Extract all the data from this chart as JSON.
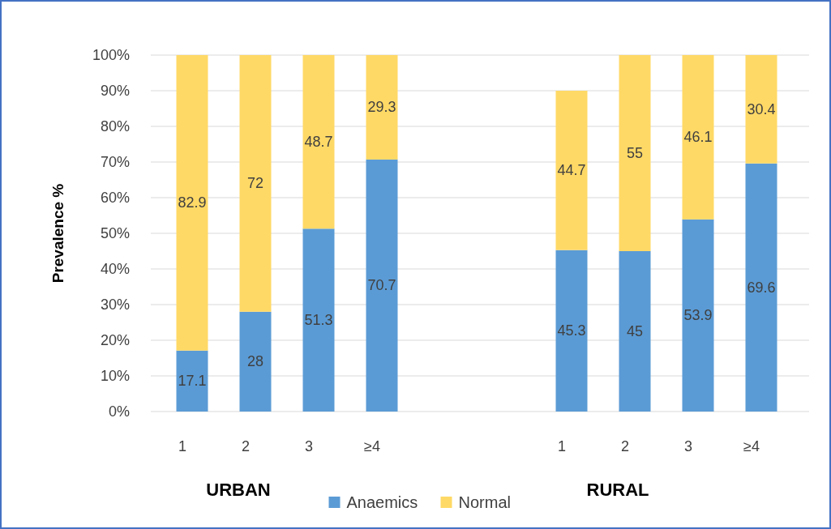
{
  "chart_data": {
    "type": "bar",
    "stacked": true,
    "ylabel": "Prevalence %",
    "categories": [
      "1",
      "2",
      "3",
      "≥4",
      null,
      null,
      "1",
      "2",
      "3",
      "≥4"
    ],
    "series": [
      {
        "name": "Anaemics",
        "color": "#5b9bd5",
        "values": [
          17.1,
          28,
          51.3,
          70.7,
          null,
          null,
          45.3,
          45,
          53.9,
          69.6
        ]
      },
      {
        "name": "Normal",
        "color": "#ffd966",
        "values": [
          82.9,
          72,
          48.7,
          29.3,
          null,
          null,
          44.7,
          55,
          46.1,
          30.4
        ]
      }
    ],
    "ylim": [
      0,
      100
    ],
    "yticks": [
      {
        "value": 0,
        "label": "0%"
      },
      {
        "value": 10,
        "label": "10%"
      },
      {
        "value": 20,
        "label": "20%"
      },
      {
        "value": 30,
        "label": "30%"
      },
      {
        "value": 40,
        "label": "40%"
      },
      {
        "value": 50,
        "label": "50%"
      },
      {
        "value": 60,
        "label": "60%"
      },
      {
        "value": 70,
        "label": "70%"
      },
      {
        "value": 80,
        "label": "80%"
      },
      {
        "value": 90,
        "label": "90%"
      },
      {
        "value": 100,
        "label": "100%"
      }
    ],
    "grid": "y",
    "legend": "bottom",
    "data_labels": true,
    "annotations": [
      "URBAN",
      "RURAL"
    ]
  }
}
